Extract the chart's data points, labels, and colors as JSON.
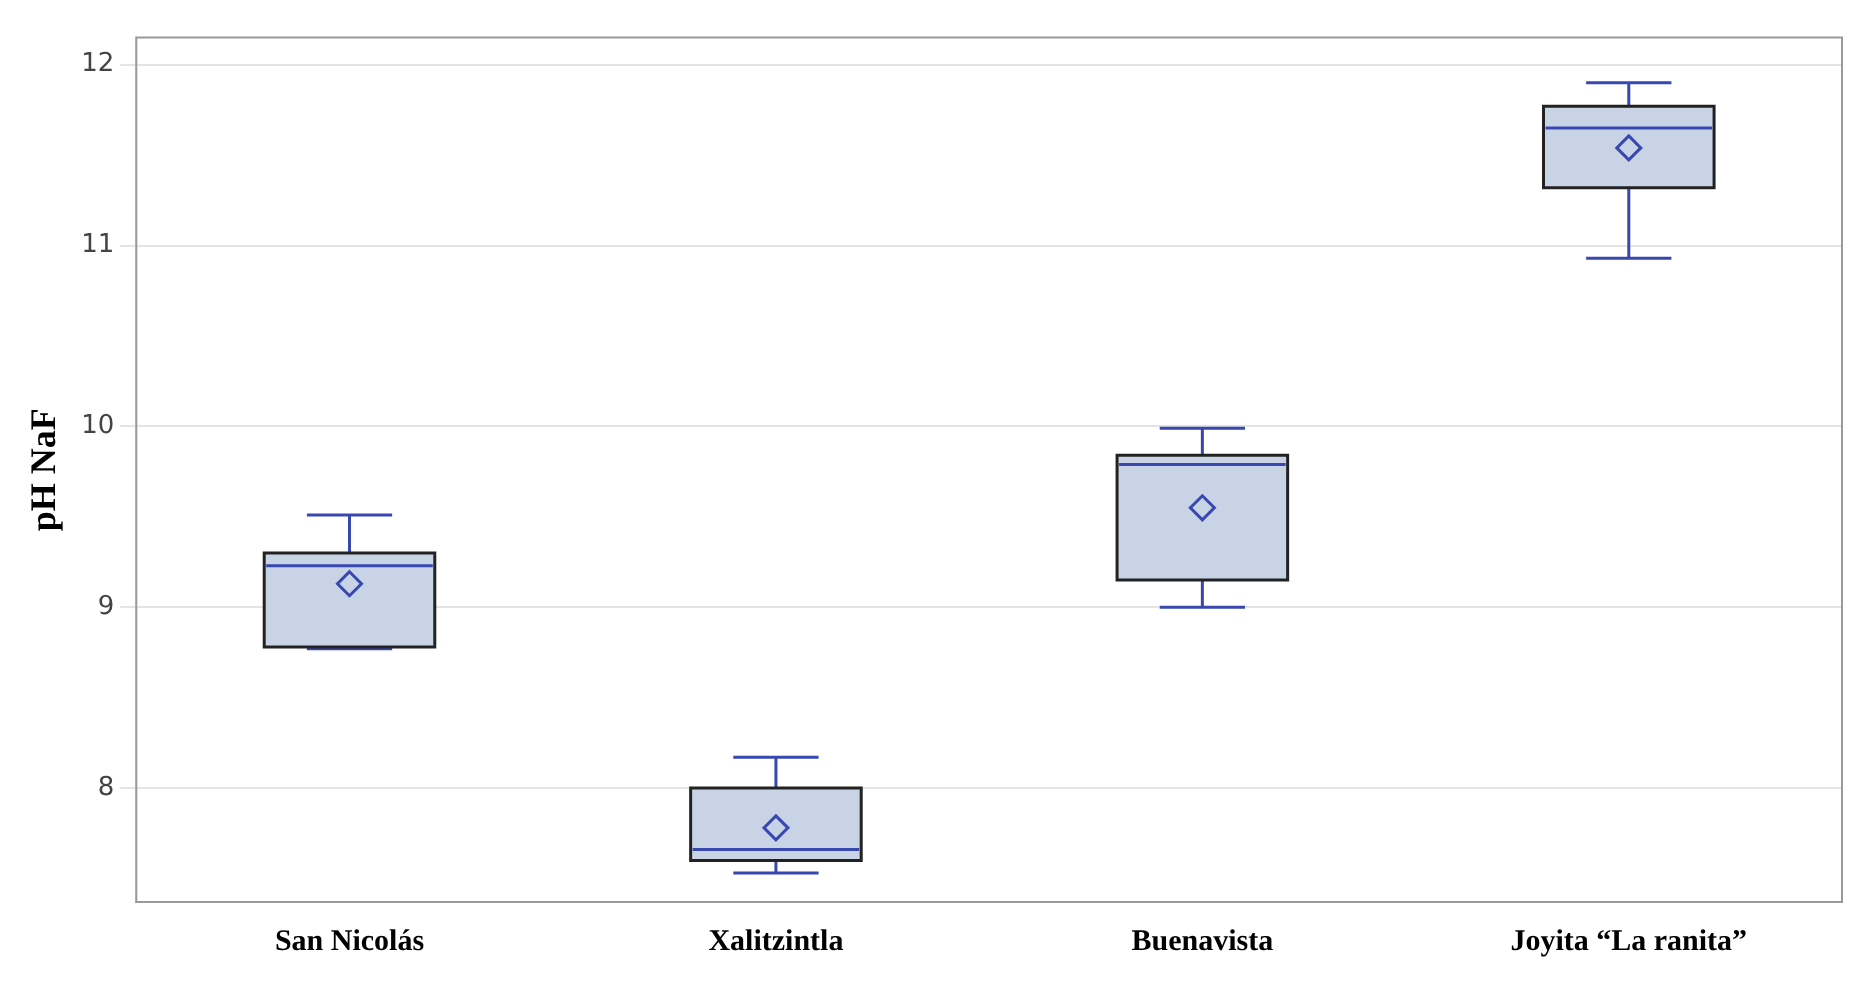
{
  "chart_data": {
    "type": "box",
    "ylabel": "pH NaF",
    "categories": [
      "San Nicolás",
      "Xalitzintla",
      "Buenavista",
      "Joyita “La ranita”"
    ],
    "series": [
      {
        "color": "#c8d3e6",
        "boxes": [
          {
            "low": 8.77,
            "q1": 8.78,
            "median": 9.23,
            "q3": 9.3,
            "high": 9.51,
            "mean": 9.13
          },
          {
            "low": 7.53,
            "q1": 7.6,
            "median": 7.66,
            "q3": 8.0,
            "high": 8.17,
            "mean": 7.78
          },
          {
            "low": 9.0,
            "q1": 9.15,
            "median": 9.79,
            "q3": 9.84,
            "high": 9.99,
            "mean": 9.55
          },
          {
            "low": 10.93,
            "q1": 11.32,
            "median": 11.65,
            "q3": 11.77,
            "high": 11.9,
            "mean": 11.54
          }
        ]
      }
    ],
    "ylim": [
      7.37,
      12.15
    ],
    "yticks": [
      8,
      9,
      10,
      11,
      12
    ],
    "grid": "y",
    "marker": "diamond"
  }
}
